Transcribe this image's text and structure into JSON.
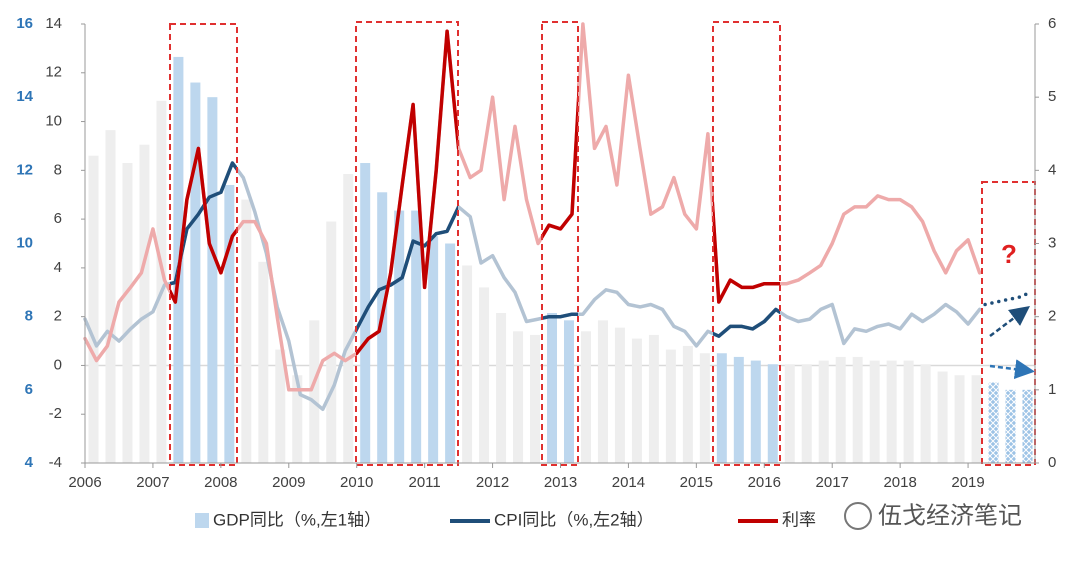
{
  "chart_data": {
    "type": "combo",
    "xlim": [
      2006,
      2020
    ],
    "xticks": [
      2006,
      2007,
      2008,
      2009,
      2010,
      2011,
      2012,
      2013,
      2014,
      2015,
      2016,
      2017,
      2018,
      2019
    ],
    "ylim": [
      4,
      16
    ],
    "yticks": [
      4,
      6,
      8,
      10,
      12,
      14,
      16
    ],
    "y2lim": [
      -4,
      14
    ],
    "y2ticks": [
      -4,
      -2,
      0,
      2,
      4,
      6,
      8,
      10,
      12,
      14
    ],
    "y3lim": [
      0,
      6
    ],
    "y3ticks": [
      0,
      1,
      2,
      3,
      4,
      5,
      6
    ],
    "annotation": "?",
    "watermark": "伍戈经济笔记",
    "series": [
      {
        "name": "GDP同比（%,左1轴）",
        "type": "bar",
        "axis": "y",
        "color": "#bdd7ee",
        "muted_color": "#eeeeee",
        "x": [
          2006.125,
          2006.375,
          2006.625,
          2006.875,
          2007.125,
          2007.375,
          2007.625,
          2007.875,
          2008.125,
          2008.375,
          2008.625,
          2008.875,
          2009.125,
          2009.375,
          2009.625,
          2009.875,
          2010.125,
          2010.375,
          2010.625,
          2010.875,
          2011.125,
          2011.375,
          2011.625,
          2011.875,
          2012.125,
          2012.375,
          2012.625,
          2012.875,
          2013.125,
          2013.375,
          2013.625,
          2013.875,
          2014.125,
          2014.375,
          2014.625,
          2014.875,
          2015.125,
          2015.375,
          2015.625,
          2015.875,
          2016.125,
          2016.375,
          2016.625,
          2016.875,
          2017.125,
          2017.375,
          2017.625,
          2017.875,
          2018.125,
          2018.375,
          2018.625,
          2018.875,
          2019.125,
          2019.375,
          2019.625,
          2019.875
        ],
        "values": [
          12.4,
          13.1,
          12.2,
          12.7,
          13.9,
          15.1,
          14.4,
          14.0,
          11.6,
          11.2,
          9.5,
          7.1,
          6.4,
          7.9,
          10.6,
          11.9,
          12.2,
          11.4,
          10.9,
          10.9,
          10.2,
          10.0,
          9.4,
          8.8,
          8.1,
          7.6,
          7.5,
          8.1,
          7.9,
          7.6,
          7.9,
          7.7,
          7.4,
          7.5,
          7.1,
          7.2,
          7.0,
          7.0,
          6.9,
          6.8,
          6.7,
          6.7,
          6.7,
          6.8,
          6.9,
          6.9,
          6.8,
          6.8,
          6.8,
          6.7,
          6.5,
          6.4,
          6.4,
          6.2,
          6.0,
          6.0
        ]
      },
      {
        "name": "CPI同比（%,左2轴）",
        "type": "line",
        "axis": "y2",
        "color": "#1f4e79",
        "muted_color": "#b3c3d3",
        "x": [
          2006.0,
          2006.17,
          2006.33,
          2006.5,
          2006.67,
          2006.83,
          2007.0,
          2007.17,
          2007.33,
          2007.5,
          2007.67,
          2007.83,
          2008.0,
          2008.17,
          2008.33,
          2008.5,
          2008.67,
          2008.83,
          2009.0,
          2009.17,
          2009.33,
          2009.5,
          2009.67,
          2009.83,
          2010.0,
          2010.17,
          2010.33,
          2010.5,
          2010.67,
          2010.83,
          2011.0,
          2011.17,
          2011.33,
          2011.5,
          2011.67,
          2011.83,
          2012.0,
          2012.17,
          2012.33,
          2012.5,
          2012.67,
          2012.83,
          2013.0,
          2013.17,
          2013.33,
          2013.5,
          2013.67,
          2013.83,
          2014.0,
          2014.17,
          2014.33,
          2014.5,
          2014.67,
          2014.83,
          2015.0,
          2015.17,
          2015.33,
          2015.5,
          2015.67,
          2015.83,
          2016.0,
          2016.17,
          2016.33,
          2016.5,
          2016.67,
          2016.83,
          2017.0,
          2017.17,
          2017.33,
          2017.5,
          2017.67,
          2017.83,
          2018.0,
          2018.17,
          2018.33,
          2018.5,
          2018.67,
          2018.83,
          2019.0,
          2019.17
        ],
        "values": [
          1.9,
          0.8,
          1.4,
          1.0,
          1.5,
          1.9,
          2.2,
          3.3,
          3.4,
          5.6,
          6.2,
          6.9,
          7.1,
          8.3,
          7.7,
          6.3,
          4.6,
          2.4,
          1.0,
          -1.2,
          -1.4,
          -1.8,
          -0.8,
          0.6,
          1.5,
          2.4,
          3.1,
          3.3,
          3.6,
          5.1,
          4.9,
          5.4,
          5.5,
          6.5,
          6.1,
          4.2,
          4.5,
          3.6,
          3.0,
          1.8,
          1.9,
          2.0,
          2.0,
          2.1,
          2.1,
          2.7,
          3.1,
          3.0,
          2.5,
          2.4,
          2.5,
          2.3,
          1.6,
          1.4,
          0.8,
          1.4,
          1.2,
          1.6,
          1.6,
          1.5,
          1.8,
          2.3,
          2.0,
          1.8,
          1.9,
          2.3,
          2.5,
          0.9,
          1.5,
          1.4,
          1.6,
          1.7,
          1.5,
          2.1,
          1.8,
          2.1,
          2.5,
          2.2,
          1.7,
          2.3
        ]
      },
      {
        "name": "利率",
        "type": "line",
        "axis": "y3",
        "color": "#c00000",
        "muted_color": "#eeaaaa",
        "x": [
          2006.0,
          2006.17,
          2006.33,
          2006.5,
          2006.67,
          2006.83,
          2007.0,
          2007.17,
          2007.33,
          2007.5,
          2007.67,
          2007.83,
          2008.0,
          2008.17,
          2008.33,
          2008.5,
          2008.67,
          2008.83,
          2009.0,
          2009.17,
          2009.33,
          2009.5,
          2009.67,
          2009.83,
          2010.0,
          2010.17,
          2010.33,
          2010.5,
          2010.67,
          2010.83,
          2011.0,
          2011.17,
          2011.33,
          2011.5,
          2011.67,
          2011.83,
          2012.0,
          2012.17,
          2012.33,
          2012.5,
          2012.67,
          2012.83,
          2013.0,
          2013.17,
          2013.33,
          2013.5,
          2013.67,
          2013.83,
          2014.0,
          2014.17,
          2014.33,
          2014.5,
          2014.67,
          2014.83,
          2015.0,
          2015.17,
          2015.33,
          2015.5,
          2015.67,
          2015.83,
          2016.0,
          2016.17,
          2016.33,
          2016.5,
          2016.67,
          2016.83,
          2017.0,
          2017.17,
          2017.33,
          2017.5,
          2017.67,
          2017.83,
          2018.0,
          2018.17,
          2018.33,
          2018.5,
          2018.67,
          2018.83,
          2019.0,
          2019.17
        ],
        "values": [
          1.7,
          1.4,
          1.6,
          2.2,
          2.4,
          2.6,
          3.2,
          2.5,
          2.2,
          3.6,
          4.3,
          3.0,
          2.6,
          3.1,
          3.3,
          3.3,
          3.0,
          2.0,
          1.0,
          1.0,
          1.0,
          1.4,
          1.5,
          1.4,
          1.5,
          1.7,
          1.8,
          2.6,
          3.8,
          4.9,
          2.4,
          4.0,
          5.9,
          4.3,
          3.9,
          4.0,
          5.0,
          3.6,
          4.6,
          3.6,
          3.0,
          3.25,
          3.2,
          3.4,
          6.0,
          4.3,
          4.6,
          3.8,
          5.3,
          4.3,
          3.4,
          3.5,
          3.9,
          3.4,
          3.2,
          4.5,
          2.2,
          2.5,
          2.4,
          2.4,
          2.45,
          2.45,
          2.45,
          2.5,
          2.6,
          2.7,
          3.0,
          3.4,
          3.5,
          3.5,
          3.65,
          3.6,
          3.6,
          3.5,
          3.3,
          2.9,
          2.6,
          2.9,
          3.05,
          2.6
        ]
      },
      {
        "type": "line",
        "axis": "y2",
        "style": "dotted",
        "color": "#1f4e79",
        "x": [
          2019.25,
          2019.42,
          2019.58,
          2019.75,
          2019.92
        ],
        "values": [
          2.5,
          2.6,
          2.7,
          2.8,
          3.0
        ]
      }
    ]
  }
}
